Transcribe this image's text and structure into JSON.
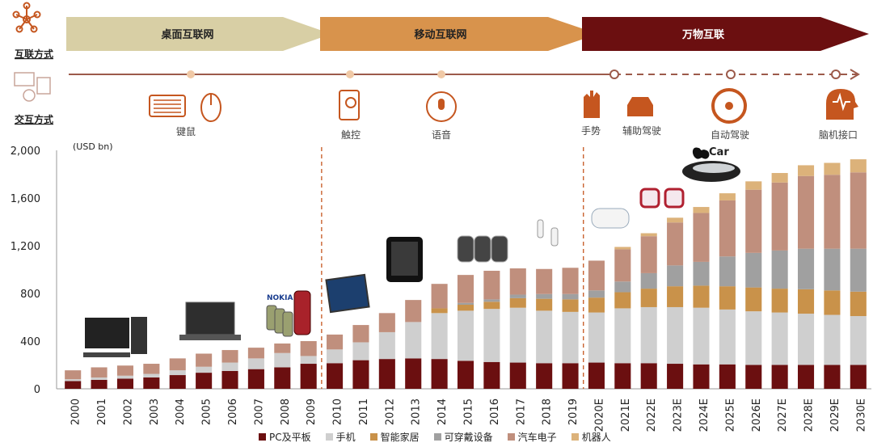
{
  "header": {
    "row1_label": "互联方式",
    "row2_label": "交互方式",
    "eras": [
      "桌面互联网",
      "移动互联网",
      "万物互联"
    ],
    "interactions": [
      "键鼠",
      "触控",
      "语音",
      "手势",
      "辅助驾驶",
      "自动驾驶",
      "脑机接口"
    ],
    "brand_label": "Car",
    "device_brand": "NOKIA"
  },
  "colors": {
    "pc": "#6b0f10",
    "phone": "#cfcfcf",
    "home": "#c9924a",
    "wear": "#a0a0a0",
    "auto": "#c08f7d",
    "robot": "#dcb27a",
    "era1": "#d8cfa5",
    "era2": "#d8934c",
    "era3": "#6b0f10",
    "accent": "#c5561f",
    "timeline": "#9c5a4a"
  },
  "chart_data": {
    "type": "bar",
    "stacked": true,
    "ylabel": "(USD bn)",
    "ylim": [
      0,
      2000
    ],
    "yticks": [
      "0",
      "400",
      "800",
      "1,200",
      "1,600",
      "2,000"
    ],
    "grid": false,
    "legend_position": "bottom",
    "categories": [
      "2000",
      "2001",
      "2002",
      "2003",
      "2004",
      "2005",
      "2006",
      "2007",
      "2008",
      "2009",
      "2010",
      "2011",
      "2012",
      "2013",
      "2014",
      "2015",
      "2016",
      "2017",
      "2018",
      "2019",
      "2020E",
      "2021E",
      "2022E",
      "2023E",
      "2024E",
      "2025E",
      "2026E",
      "2027E",
      "2028E",
      "2029E",
      "2030E"
    ],
    "series": [
      {
        "name": "PC及平板",
        "values": [
          65,
          75,
          85,
          95,
          115,
          135,
          150,
          165,
          180,
          210,
          215,
          240,
          250,
          255,
          250,
          235,
          225,
          220,
          215,
          215,
          220,
          215,
          215,
          210,
          205,
          205,
          200,
          200,
          200,
          200,
          200
        ]
      },
      {
        "name": "手机",
        "values": [
          15,
          20,
          25,
          30,
          40,
          50,
          70,
          90,
          120,
          65,
          115,
          150,
          225,
          305,
          385,
          420,
          445,
          460,
          440,
          430,
          420,
          460,
          470,
          475,
          475,
          460,
          450,
          440,
          430,
          420,
          410
        ]
      },
      {
        "name": "智能家居",
        "values": [
          0,
          0,
          0,
          0,
          0,
          0,
          0,
          0,
          0,
          0,
          0,
          0,
          0,
          0,
          40,
          50,
          60,
          80,
          100,
          105,
          125,
          135,
          155,
          175,
          185,
          195,
          200,
          200,
          205,
          205,
          205
        ]
      },
      {
        "name": "可穿戴设备",
        "values": [
          0,
          0,
          0,
          0,
          0,
          0,
          0,
          0,
          0,
          0,
          0,
          0,
          0,
          0,
          0,
          15,
          20,
          30,
          40,
          45,
          60,
          90,
          130,
          175,
          200,
          250,
          290,
          320,
          340,
          350,
          360
        ]
      },
      {
        "name": "汽车电子",
        "values": [
          75,
          85,
          85,
          85,
          100,
          110,
          105,
          90,
          80,
          125,
          125,
          145,
          160,
          185,
          205,
          235,
          240,
          220,
          210,
          220,
          250,
          270,
          310,
          360,
          410,
          470,
          530,
          570,
          610,
          620,
          640
        ]
      },
      {
        "name": "机器人",
        "values": [
          0,
          0,
          0,
          0,
          0,
          0,
          0,
          0,
          0,
          0,
          0,
          0,
          0,
          0,
          0,
          0,
          0,
          0,
          0,
          0,
          0,
          20,
          25,
          40,
          50,
          60,
          70,
          80,
          90,
          100,
          110
        ]
      }
    ],
    "dividers_after": [
      "2009",
      "2019"
    ]
  }
}
